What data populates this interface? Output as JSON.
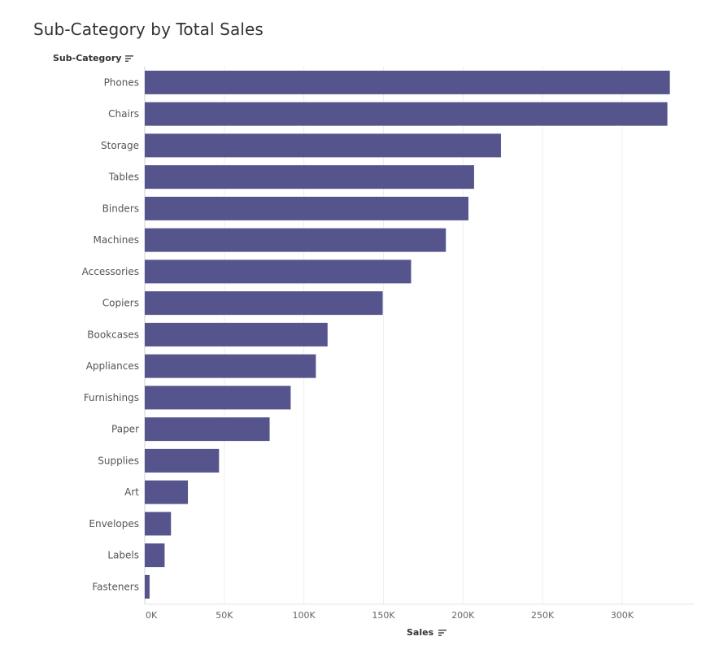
{
  "chart_data": {
    "type": "bar",
    "orientation": "horizontal",
    "title": "Sub-Category by Total Sales",
    "category_header": "Sub-Category",
    "xlabel": "Sales",
    "categories": [
      "Phones",
      "Chairs",
      "Storage",
      "Tables",
      "Binders",
      "Machines",
      "Accessories",
      "Copiers",
      "Bookcases",
      "Appliances",
      "Furnishings",
      "Paper",
      "Supplies",
      "Art",
      "Envelopes",
      "Labels",
      "Fasteners"
    ],
    "values": [
      330007,
      328450,
      223844,
      206966,
      203413,
      189239,
      167380,
      149528,
      114880,
      107532,
      91705,
      78479,
      46674,
      27119,
      16476,
      12486,
      3024
    ],
    "xlim": [
      0,
      345000
    ],
    "xticks": [
      0,
      50000,
      100000,
      150000,
      200000,
      250000,
      300000
    ],
    "xtick_labels": [
      "0K",
      "50K",
      "100K",
      "150K",
      "200K",
      "250K",
      "300K"
    ],
    "grid": true,
    "bar_color": "#55548c",
    "grid_color": "#eeeeee"
  },
  "icons": {
    "header_sort": "sort-descending-icon",
    "axis_sort": "sort-descending-icon"
  }
}
